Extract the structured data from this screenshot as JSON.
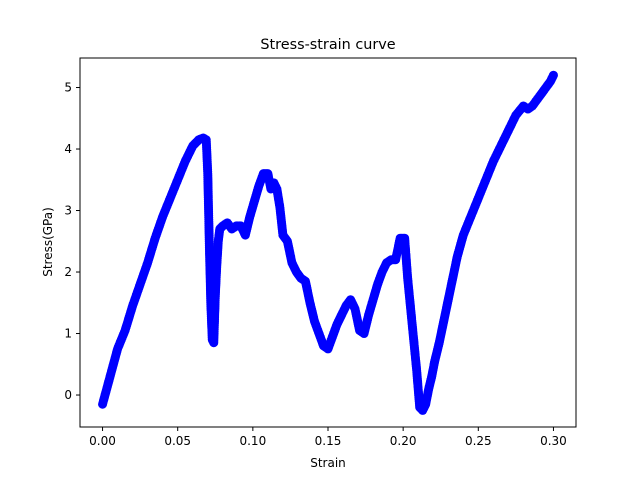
{
  "chart_data": {
    "type": "scatter",
    "title": "Stress-strain curve",
    "xlabel": "Strain",
    "ylabel": "Stress(GPa)",
    "xlim": [
      -0.015,
      0.315
    ],
    "ylim": [
      -0.52,
      5.48
    ],
    "xticks": [
      0.0,
      0.05,
      0.1,
      0.15,
      0.2,
      0.25,
      0.3
    ],
    "xtick_labels": [
      "0.00",
      "0.05",
      "0.10",
      "0.15",
      "0.20",
      "0.25",
      "0.30"
    ],
    "yticks": [
      0,
      1,
      2,
      3,
      4,
      5
    ],
    "ytick_labels": [
      "0",
      "1",
      "2",
      "3",
      "4",
      "5"
    ],
    "grid": false,
    "marker_color": "#0000ff",
    "series": [
      {
        "x": [
          0.0,
          0.005,
          0.01,
          0.015,
          0.02,
          0.025,
          0.03,
          0.035,
          0.04,
          0.045,
          0.05,
          0.055,
          0.06,
          0.064,
          0.067,
          0.069,
          0.07,
          0.071,
          0.072,
          0.073,
          0.074,
          0.075,
          0.076,
          0.077,
          0.078,
          0.08,
          0.083,
          0.086,
          0.089,
          0.092,
          0.095,
          0.098,
          0.101,
          0.104,
          0.107,
          0.11,
          0.112,
          0.114,
          0.116,
          0.118,
          0.12,
          0.123,
          0.126,
          0.129,
          0.132,
          0.135,
          0.138,
          0.141,
          0.144,
          0.147,
          0.15,
          0.153,
          0.156,
          0.159,
          0.162,
          0.165,
          0.168,
          0.171,
          0.174,
          0.177,
          0.18,
          0.183,
          0.186,
          0.189,
          0.192,
          0.195,
          0.198,
          0.201,
          0.203,
          0.205,
          0.207,
          0.209,
          0.211,
          0.213,
          0.215,
          0.217,
          0.219,
          0.221,
          0.224,
          0.227,
          0.23,
          0.233,
          0.236,
          0.24,
          0.245,
          0.25,
          0.255,
          0.26,
          0.265,
          0.27,
          0.275,
          0.28,
          0.283,
          0.286,
          0.289,
          0.292,
          0.295,
          0.298,
          0.3
        ],
        "y": [
          -0.15,
          0.3,
          0.75,
          1.05,
          1.45,
          1.8,
          2.15,
          2.55,
          2.9,
          3.2,
          3.5,
          3.8,
          4.05,
          4.15,
          4.18,
          4.15,
          3.6,
          2.5,
          1.5,
          0.9,
          0.85,
          1.6,
          2.1,
          2.5,
          2.7,
          2.75,
          2.8,
          2.7,
          2.75,
          2.75,
          2.6,
          2.9,
          3.15,
          3.4,
          3.6,
          3.6,
          3.35,
          3.45,
          3.35,
          3.05,
          2.6,
          2.5,
          2.15,
          2.0,
          1.9,
          1.85,
          1.5,
          1.2,
          1.0,
          0.8,
          0.75,
          0.95,
          1.15,
          1.3,
          1.45,
          1.55,
          1.4,
          1.05,
          1.0,
          1.3,
          1.55,
          1.8,
          2.0,
          2.15,
          2.2,
          2.2,
          2.55,
          2.55,
          1.9,
          1.4,
          0.9,
          0.4,
          -0.2,
          -0.25,
          -0.15,
          0.1,
          0.3,
          0.55,
          0.85,
          1.2,
          1.55,
          1.9,
          2.25,
          2.6,
          2.9,
          3.2,
          3.5,
          3.8,
          4.05,
          4.3,
          4.55,
          4.7,
          4.65,
          4.7,
          4.8,
          4.9,
          5.0,
          5.1,
          5.2
        ]
      }
    ]
  }
}
